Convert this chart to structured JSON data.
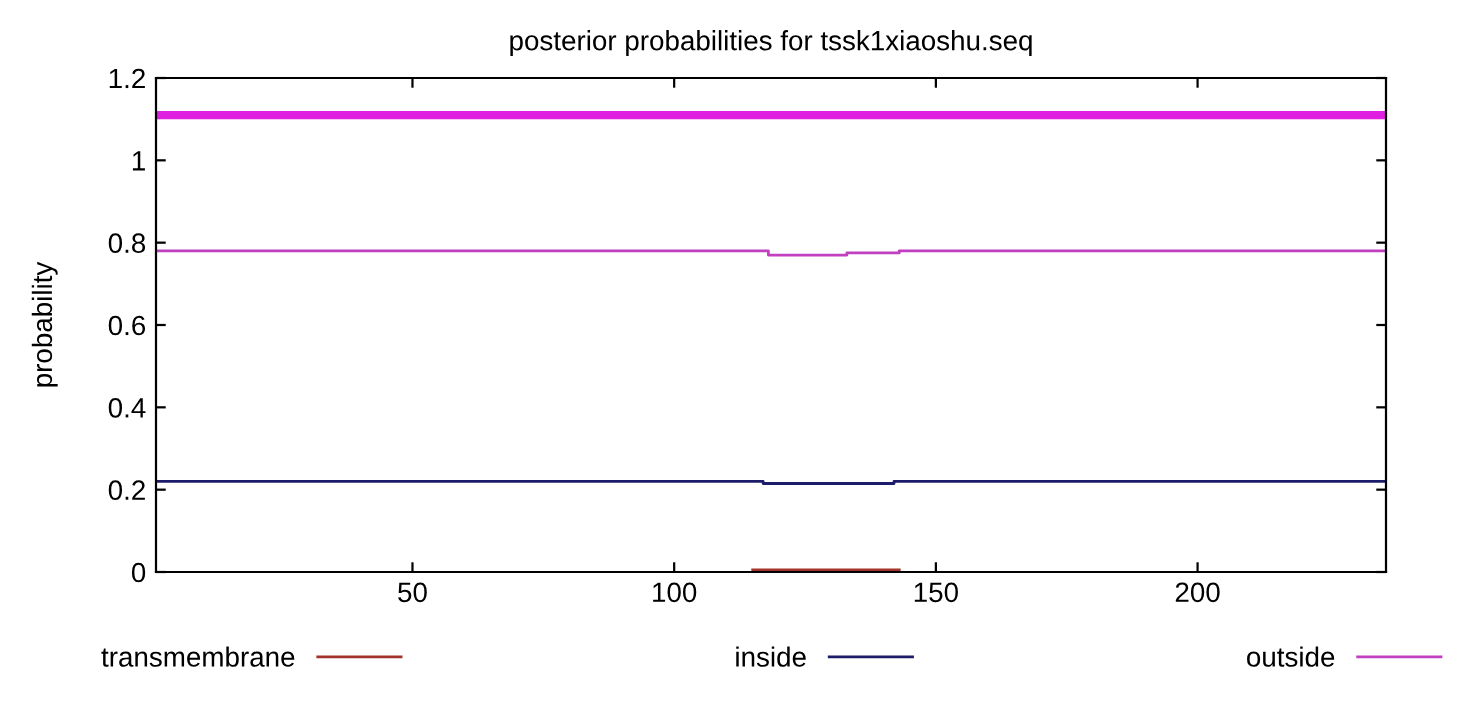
{
  "chart_data": {
    "type": "step",
    "title": "posterior probabilities for tssk1xiaoshu.seq",
    "ylabel": "probability",
    "xlim": [
      1,
      236
    ],
    "ylim": [
      0,
      1.2
    ],
    "xticks": [
      50,
      100,
      150,
      200
    ],
    "yticks": [
      0,
      0.2,
      0.4,
      0.6,
      0.8,
      1,
      1.2
    ],
    "grid": false,
    "legend": "bottom",
    "series": [
      {
        "name": "transmembrane",
        "color": "#a0342a",
        "x": [
          115,
          143
        ],
        "values": [
          0.005,
          0.005
        ]
      },
      {
        "name": "inside",
        "color": "#1c1c6a",
        "x": [
          1,
          117,
          142,
          236
        ],
        "values": [
          0.22,
          0.215,
          0.22,
          0.22
        ]
      },
      {
        "name": "outside",
        "color": "#c040c0",
        "x": [
          1,
          118,
          133,
          143,
          236
        ],
        "values": [
          0.78,
          0.77,
          0.775,
          0.78,
          0.78
        ]
      },
      {
        "color": "#e020e0",
        "x": [
          1,
          236
        ],
        "values": [
          1.11,
          1.11
        ]
      }
    ]
  }
}
